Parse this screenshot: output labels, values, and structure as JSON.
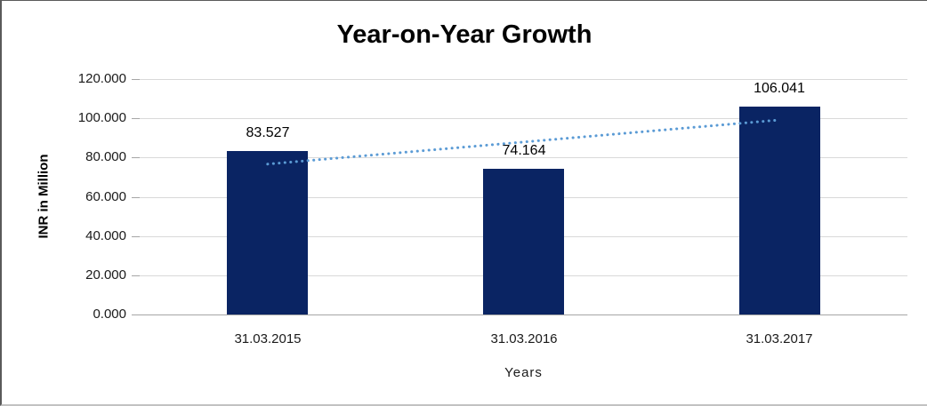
{
  "chart_data": {
    "type": "bar",
    "title": "Year-on-Year Growth",
    "xlabel": "Years",
    "ylabel": "INR in Million",
    "categories": [
      "31.03.2015",
      "31.03.2016",
      "31.03.2017"
    ],
    "values": [
      83.527,
      74.164,
      106.041
    ],
    "value_labels": [
      "83.527",
      "74.164",
      "106.041"
    ],
    "y_ticks": [
      {
        "value": 0,
        "label": "0.000"
      },
      {
        "value": 20,
        "label": "20.000"
      },
      {
        "value": 40,
        "label": "40.000"
      },
      {
        "value": 60,
        "label": "60.000"
      },
      {
        "value": 80,
        "label": "80.000"
      },
      {
        "value": 100,
        "label": "100.000"
      },
      {
        "value": 120,
        "label": "120.000"
      }
    ],
    "ylim": [
      0,
      120
    ],
    "grid": true,
    "legend": "none",
    "trendline": {
      "type": "linear",
      "style": "dotted",
      "color": "#5B9BD5"
    },
    "colors": {
      "bar": "#0A2463",
      "gridline": "#D9D9D9",
      "axis_line": "#A6A6A6",
      "text": "#1a1a1a",
      "background": "#FFFFFF"
    }
  }
}
